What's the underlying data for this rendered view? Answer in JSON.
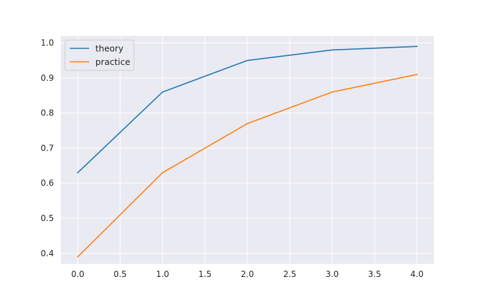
{
  "chart_data": {
    "type": "line",
    "title": "",
    "xlabel": "",
    "ylabel": "",
    "x": [
      0,
      1,
      2,
      3,
      4
    ],
    "series": [
      {
        "name": "theory",
        "color": "#1f77b4",
        "values": [
          0.63,
          0.86,
          0.95,
          0.98,
          0.99
        ]
      },
      {
        "name": "practice",
        "color": "#ff7f0e",
        "values": [
          0.39,
          0.63,
          0.77,
          0.86,
          0.91
        ]
      }
    ],
    "xlim": [
      -0.2,
      4.2
    ],
    "ylim": [
      0.37,
      1.02
    ],
    "xticks": [
      "0.0",
      "0.5",
      "1.0",
      "1.5",
      "2.0",
      "2.5",
      "3.0",
      "3.5",
      "4.0"
    ],
    "yticks": [
      "0.4",
      "0.5",
      "0.6",
      "0.7",
      "0.8",
      "0.9",
      "1.0"
    ],
    "grid": true,
    "legend_position": "upper-left",
    "background_color": "#eaeaf2",
    "grid_color": "#ffffff"
  }
}
